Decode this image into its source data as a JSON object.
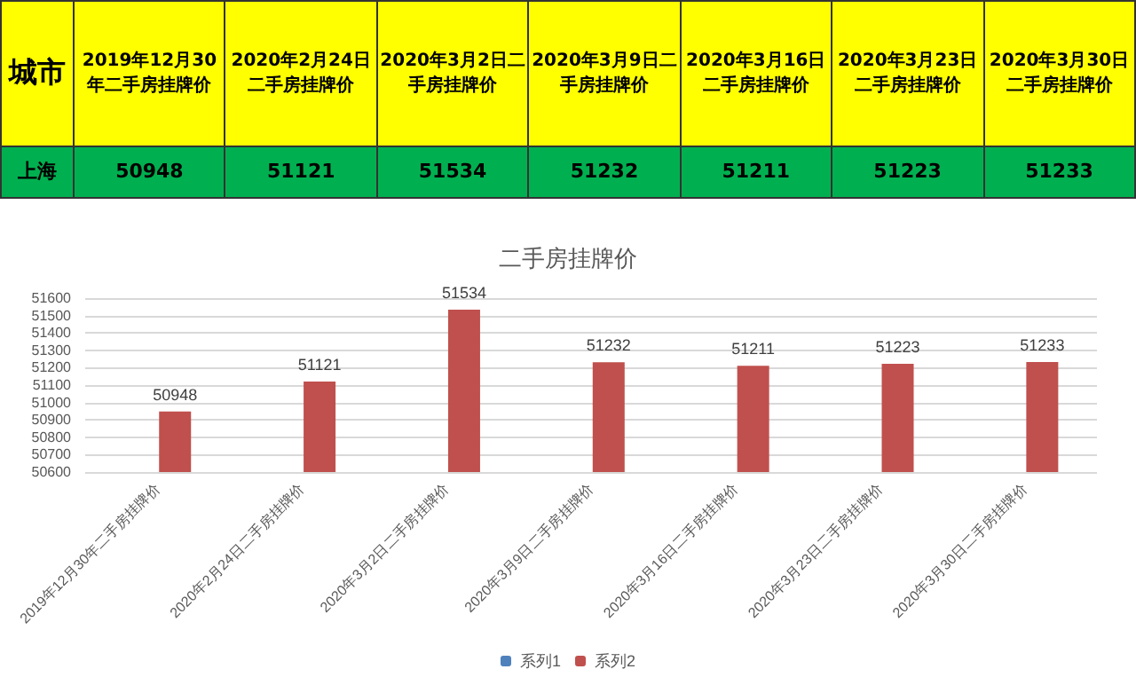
{
  "chart_data": {
    "type": "bar",
    "title": "二手房挂牌价",
    "categories": [
      "2019年12月30年二手房挂牌价",
      "2020年2月24日二手房挂牌价",
      "2020年3月2日二手房挂牌价",
      "2020年3月9日二手房挂牌价",
      "2020年3月16日二手房挂牌价",
      "2020年3月23日二手房挂牌价",
      "2020年3月30日二手房挂牌价"
    ],
    "series": [
      {
        "name": "系列1",
        "color": "#4f81bd",
        "values": [
          null,
          null,
          null,
          null,
          null,
          null,
          null
        ]
      },
      {
        "name": "系列2",
        "color": "#c0504d",
        "values": [
          50948,
          51121,
          51534,
          51232,
          51211,
          51223,
          51233
        ],
        "value_labels": [
          "50948",
          "51121",
          "51534",
          "51232",
          "51211",
          "51223",
          "51233"
        ]
      }
    ],
    "ylim": [
      50600,
      51600
    ],
    "yticks": [
      50600,
      50700,
      50800,
      50900,
      51000,
      51100,
      51200,
      51300,
      51400,
      51500,
      51600
    ],
    "grid": "y",
    "legend": "bottom",
    "annotations": [
      "城市",
      "上海"
    ]
  }
}
